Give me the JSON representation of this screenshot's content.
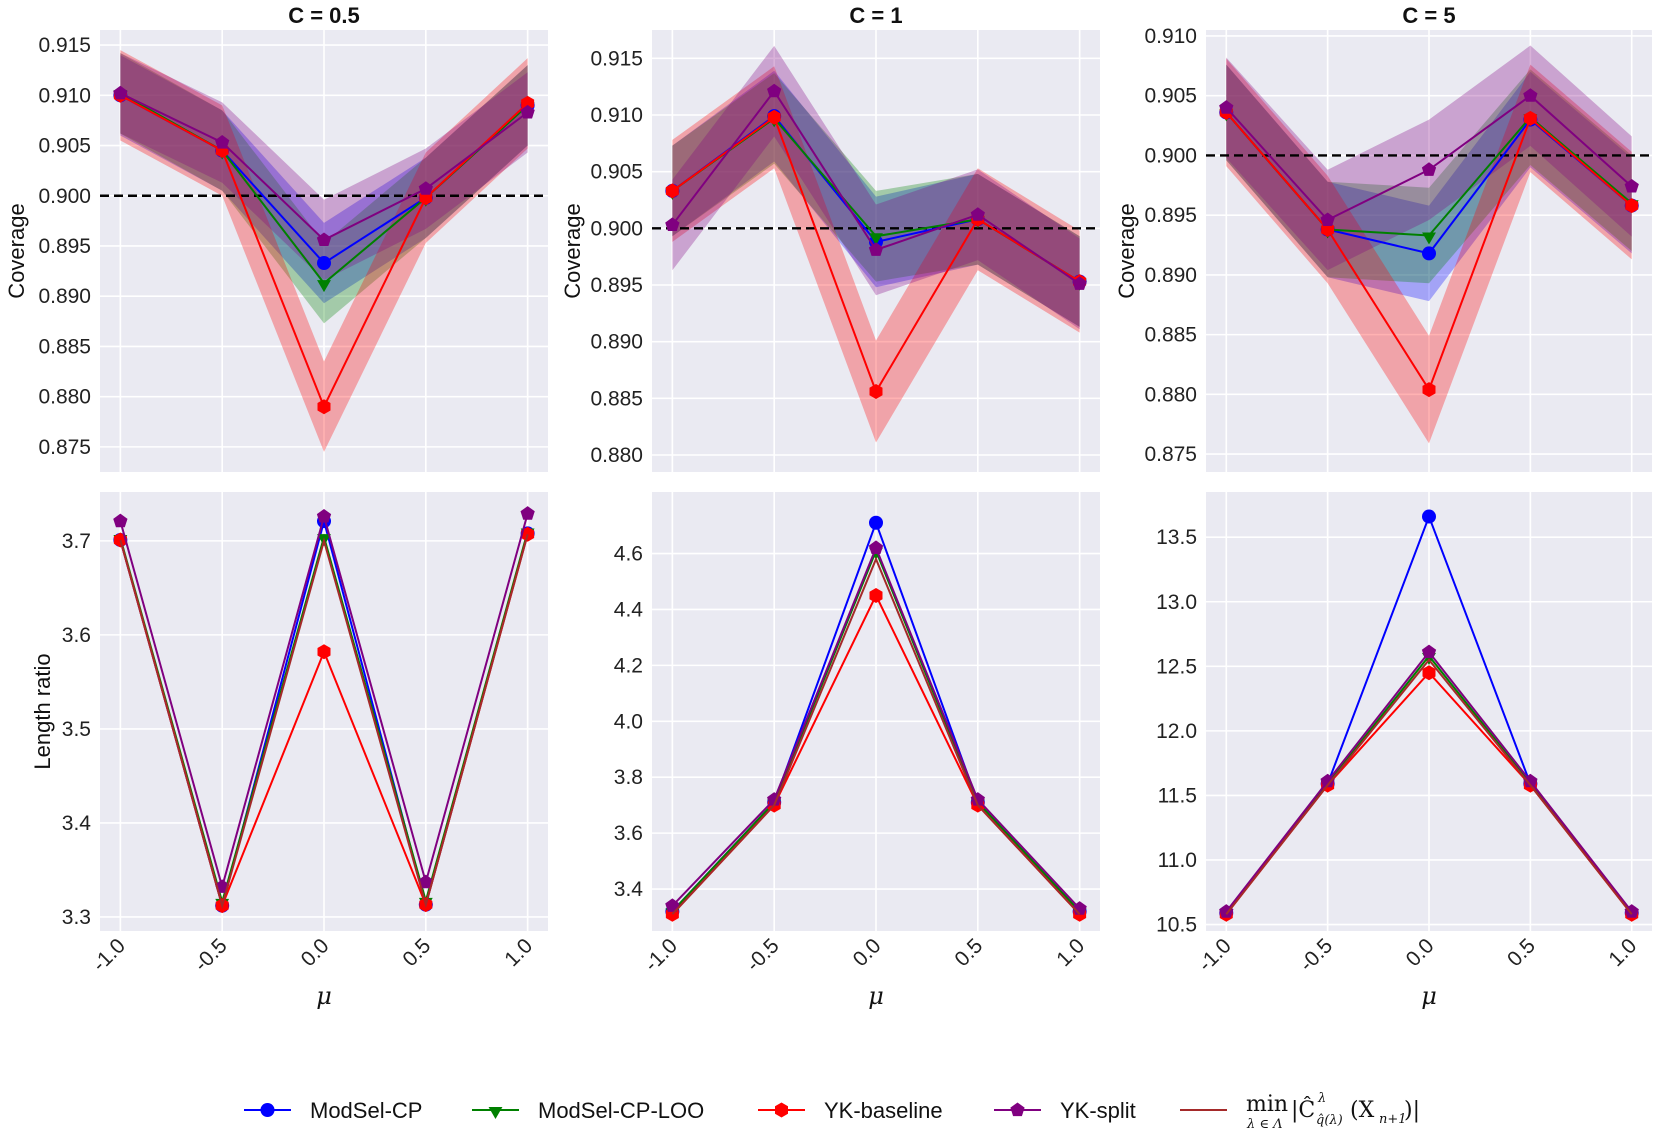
{
  "legend": [
    {
      "key": "modsel",
      "label": "ModSel-CP",
      "color": "#0000ff",
      "marker": "circle"
    },
    {
      "key": "loo",
      "label": "ModSel-CP-LOO",
      "color": "#008000",
      "marker": "triangle-down"
    },
    {
      "key": "yk",
      "label": "YK-baseline",
      "color": "#ff0000",
      "marker": "hexagon"
    },
    {
      "key": "split",
      "label": "YK-split",
      "color": "#800080",
      "marker": "pentagon"
    },
    {
      "key": "oracle",
      "label": "min|Ĉ^λ_q̂(λ)(X_{n+1})|",
      "label_min": "min",
      "label_sub": "λ ∈ Λ",
      "label_body": "|Ĉ",
      "label_sup": "λ",
      "label_sub2": "q̂(λ)",
      "label_tail": "(X",
      "label_sub3": "n+1",
      "label_end": ")|",
      "color": "#a52a2a",
      "marker": "none"
    }
  ],
  "chart_data": [
    {
      "type": "line",
      "title": "C = 0.5",
      "xlabel": "",
      "ylabel": "Coverage",
      "x": [
        -1.0,
        -0.5,
        0.0,
        0.5,
        1.0
      ],
      "ylim": [
        0.8725,
        0.9165
      ],
      "yticks": [
        0.875,
        0.88,
        0.885,
        0.89,
        0.895,
        0.9,
        0.905,
        0.91,
        0.915
      ],
      "ytick_decimals": 3,
      "reference_line": 0.9,
      "series": [
        {
          "name": "ModSel-CP",
          "key": "modsel",
          "values": [
            0.91,
            0.9045,
            0.8933,
            0.8998,
            0.909
          ],
          "band": 0.004
        },
        {
          "name": "ModSel-CP-LOO",
          "key": "loo",
          "values": [
            0.9102,
            0.9045,
            0.8913,
            0.8998,
            0.909
          ],
          "band": 0.004
        },
        {
          "name": "YK-baseline",
          "key": "yk",
          "values": [
            0.91,
            0.9045,
            0.879,
            0.8998,
            0.9092
          ],
          "band": 0.0045
        },
        {
          "name": "YK-split",
          "key": "split",
          "values": [
            0.9102,
            0.9053,
            0.8956,
            0.9007,
            0.9083
          ],
          "band": 0.004
        }
      ]
    },
    {
      "type": "line",
      "title": "C = 1",
      "xlabel": "",
      "ylabel": "Coverage",
      "x": [
        -1.0,
        -0.5,
        0.0,
        0.5,
        1.0
      ],
      "ylim": [
        0.8785,
        0.9175
      ],
      "yticks": [
        0.88,
        0.885,
        0.89,
        0.895,
        0.9,
        0.905,
        0.91,
        0.915
      ],
      "ytick_decimals": 3,
      "reference_line": 0.9,
      "series": [
        {
          "name": "ModSel-CP",
          "key": "modsel",
          "values": [
            0.9033,
            0.9099,
            0.8988,
            0.9008,
            0.8953
          ],
          "band": 0.004
        },
        {
          "name": "ModSel-CP-LOO",
          "key": "loo",
          "values": [
            0.9033,
            0.9097,
            0.8993,
            0.9008,
            0.8953
          ],
          "band": 0.004
        },
        {
          "name": "YK-baseline",
          "key": "yk",
          "values": [
            0.9033,
            0.9098,
            0.8856,
            0.9008,
            0.8953
          ],
          "band": 0.0045
        },
        {
          "name": "YK-split",
          "key": "split",
          "values": [
            0.9003,
            0.9121,
            0.8981,
            0.9012,
            0.8951
          ],
          "band": 0.004
        }
      ]
    },
    {
      "type": "line",
      "title": "C = 5",
      "xlabel": "",
      "ylabel": "Coverage",
      "x": [
        -1.0,
        -0.5,
        0.0,
        0.5,
        1.0
      ],
      "ylim": [
        0.8735,
        0.9105
      ],
      "yticks": [
        0.875,
        0.88,
        0.885,
        0.89,
        0.895,
        0.9,
        0.905,
        0.91
      ],
      "ytick_decimals": 3,
      "reference_line": 0.9,
      "series": [
        {
          "name": "ModSel-CP",
          "key": "modsel",
          "values": [
            0.9036,
            0.8938,
            0.8918,
            0.903,
            0.8958
          ],
          "band": 0.004
        },
        {
          "name": "ModSel-CP-LOO",
          "key": "loo",
          "values": [
            0.9036,
            0.8938,
            0.8933,
            0.9032,
            0.896
          ],
          "band": 0.004
        },
        {
          "name": "YK-baseline",
          "key": "yk",
          "values": [
            0.9036,
            0.8938,
            0.8804,
            0.9031,
            0.8958
          ],
          "band": 0.0045
        },
        {
          "name": "YK-split",
          "key": "split",
          "values": [
            0.904,
            0.8946,
            0.8988,
            0.905,
            0.8974
          ],
          "band": 0.0042
        }
      ]
    },
    {
      "type": "line",
      "title": "",
      "xlabel": "μ",
      "ylabel": "Length ratio",
      "x": [
        -1.0,
        -0.5,
        0.0,
        0.5,
        1.0
      ],
      "ylim": [
        3.285,
        3.752
      ],
      "yticks": [
        3.3,
        3.4,
        3.5,
        3.6,
        3.7
      ],
      "ytick_decimals": 1,
      "xtick_labels": [
        "-1.0",
        "-0.5",
        "0.0",
        "0.5",
        "1.0"
      ],
      "series": [
        {
          "name": "ModSel-CP",
          "key": "modsel",
          "values": [
            3.701,
            3.312,
            3.721,
            3.313,
            3.708
          ]
        },
        {
          "name": "ModSel-CP-LOO",
          "key": "loo",
          "values": [
            3.703,
            3.316,
            3.704,
            3.317,
            3.71
          ]
        },
        {
          "name": "YK-baseline",
          "key": "yk",
          "values": [
            3.701,
            3.312,
            3.582,
            3.313,
            3.707
          ]
        },
        {
          "name": "YK-split",
          "key": "split",
          "values": [
            3.721,
            3.332,
            3.726,
            3.337,
            3.729
          ]
        },
        {
          "name": "min|Ĉ^λ_q̂(λ)(X_{n+1})|",
          "key": "oracle",
          "values": [
            3.701,
            3.312,
            3.7,
            3.313,
            3.707
          ]
        }
      ]
    },
    {
      "type": "line",
      "title": "",
      "xlabel": "μ",
      "ylabel": "",
      "x": [
        -1.0,
        -0.5,
        0.0,
        0.5,
        1.0
      ],
      "ylim": [
        3.25,
        4.82
      ],
      "yticks": [
        3.4,
        3.6,
        3.8,
        4.0,
        4.2,
        4.4,
        4.6
      ],
      "ytick_decimals": 1,
      "xtick_labels": [
        "-1.0",
        "-0.5",
        "0.0",
        "0.5",
        "1.0"
      ],
      "series": [
        {
          "name": "ModSel-CP",
          "key": "modsel",
          "values": [
            3.32,
            3.71,
            4.71,
            3.71,
            3.32
          ]
        },
        {
          "name": "ModSel-CP-LOO",
          "key": "loo",
          "values": [
            3.32,
            3.71,
            4.61,
            3.71,
            3.32
          ]
        },
        {
          "name": "YK-baseline",
          "key": "yk",
          "values": [
            3.31,
            3.7,
            4.45,
            3.7,
            3.31
          ]
        },
        {
          "name": "YK-split",
          "key": "split",
          "values": [
            3.34,
            3.72,
            4.62,
            3.72,
            3.33
          ]
        },
        {
          "name": "min|Ĉ^λ_q̂(λ)(X_{n+1})|",
          "key": "oracle",
          "values": [
            3.31,
            3.7,
            4.58,
            3.7,
            3.31
          ]
        }
      ]
    },
    {
      "type": "line",
      "title": "",
      "xlabel": "μ",
      "ylabel": "",
      "x": [
        -1.0,
        -0.5,
        0.0,
        0.5,
        1.0
      ],
      "ylim": [
        10.45,
        13.85
      ],
      "yticks": [
        10.5,
        11.0,
        11.5,
        12.0,
        12.5,
        13.0,
        13.5
      ],
      "ytick_decimals": 1,
      "xtick_labels": [
        "-1.0",
        "-0.5",
        "0.0",
        "0.5",
        "1.0"
      ],
      "series": [
        {
          "name": "ModSel-CP",
          "key": "modsel",
          "values": [
            10.59,
            11.59,
            13.66,
            11.59,
            10.59
          ]
        },
        {
          "name": "ModSel-CP-LOO",
          "key": "loo",
          "values": [
            10.59,
            11.59,
            12.58,
            11.59,
            10.59
          ]
        },
        {
          "name": "YK-baseline",
          "key": "yk",
          "values": [
            10.58,
            11.58,
            12.45,
            11.58,
            10.58
          ]
        },
        {
          "name": "YK-split",
          "key": "split",
          "values": [
            10.6,
            11.61,
            12.61,
            11.61,
            10.6
          ]
        },
        {
          "name": "min|Ĉ^λ_q̂(λ)(X_{n+1})|",
          "key": "oracle",
          "values": [
            10.58,
            11.58,
            12.55,
            11.58,
            10.58
          ]
        }
      ]
    }
  ]
}
